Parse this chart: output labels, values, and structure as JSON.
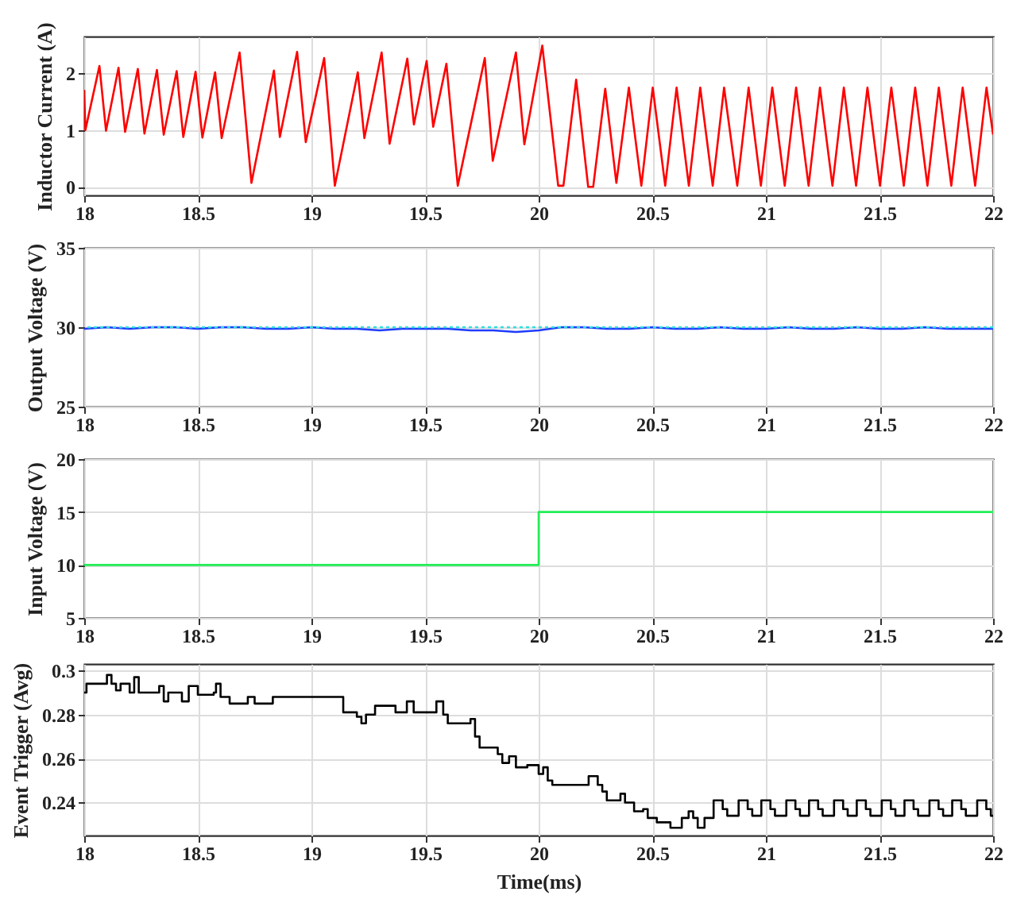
{
  "chart_data": [
    {
      "type": "line",
      "ylabel": "Inductor Current (A)",
      "xlim": [
        18,
        22
      ],
      "xticks": [
        18,
        18.5,
        19,
        19.5,
        20,
        20.5,
        21,
        21.5,
        22
      ],
      "ylim": [
        -0.15,
        2.65
      ],
      "yticks": [
        0,
        1,
        2
      ],
      "grid": true,
      "x": [
        18.0,
        18.005,
        18.067,
        18.096,
        18.151,
        18.18,
        18.236,
        18.265,
        18.32,
        18.35,
        18.407,
        18.436,
        18.49,
        18.52,
        18.576,
        18.605,
        18.684,
        18.736,
        18.835,
        18.861,
        18.937,
        18.975,
        19.056,
        19.103,
        19.204,
        19.233,
        19.309,
        19.344,
        19.422,
        19.451,
        19.507,
        19.536,
        19.594,
        19.644,
        19.763,
        19.798,
        19.9,
        19.937,
        20.016,
        20.086,
        20.109,
        20.165,
        20.218,
        20.24,
        20.293,
        20.342,
        20.397,
        20.452,
        20.502,
        20.557,
        20.607,
        20.661,
        20.711,
        20.766,
        20.816,
        20.874,
        20.924,
        20.978,
        21.028,
        21.083,
        21.133,
        21.188,
        21.238,
        21.293,
        21.343,
        21.397,
        21.447,
        21.502,
        21.552,
        21.607,
        21.657,
        21.711,
        21.761,
        21.816,
        21.866,
        21.921,
        21.971,
        22.0
      ],
      "series": [
        {
          "color": "#ff0000",
          "values": [
            1.71,
            1.0,
            2.13,
            0.99,
            2.1,
            0.97,
            2.08,
            0.94,
            2.06,
            0.92,
            2.04,
            0.88,
            2.03,
            0.87,
            2.02,
            0.86,
            2.37,
            0.07,
            2.05,
            0.88,
            2.38,
            0.79,
            2.27,
            0.02,
            2.02,
            0.86,
            2.37,
            0.76,
            2.26,
            1.1,
            2.22,
            1.06,
            2.17,
            0.02,
            2.27,
            0.46,
            2.37,
            0.75,
            2.49,
            0.02,
            0.02,
            1.89,
            0.0,
            0.0,
            1.73,
            0.07,
            1.75,
            0.02,
            1.75,
            0.02,
            1.75,
            0.02,
            1.75,
            0.02,
            1.75,
            0.02,
            1.75,
            0.02,
            1.75,
            0.02,
            1.75,
            0.02,
            1.75,
            0.02,
            1.75,
            0.02,
            1.75,
            0.02,
            1.75,
            0.02,
            1.75,
            0.02,
            1.75,
            0.02,
            1.75,
            0.02,
            1.75,
            0.92
          ]
        }
      ]
    },
    {
      "type": "line",
      "ylabel": "Output Voltage (V)",
      "xlim": [
        18,
        22
      ],
      "xticks": [
        18,
        18.5,
        19,
        19.5,
        20,
        20.5,
        21,
        21.5,
        22
      ],
      "ylim": [
        25,
        35
      ],
      "yticks": [
        25,
        30,
        35
      ],
      "grid": true,
      "x": [
        18.0,
        18.1,
        18.2,
        18.3,
        18.4,
        18.5,
        18.6,
        18.7,
        18.8,
        18.9,
        19.0,
        19.1,
        19.2,
        19.3,
        19.4,
        19.5,
        19.6,
        19.7,
        19.8,
        19.9,
        20.0,
        20.1,
        20.2,
        20.3,
        20.4,
        20.5,
        20.6,
        20.7,
        20.8,
        20.9,
        21.0,
        21.1,
        21.2,
        21.3,
        21.4,
        21.5,
        21.6,
        21.7,
        21.8,
        21.9,
        22.0
      ],
      "series": [
        {
          "color": "#1f3cff",
          "values": [
            29.9,
            30.0,
            29.9,
            30.0,
            30.0,
            29.9,
            30.0,
            30.0,
            29.9,
            29.9,
            30.0,
            29.9,
            29.9,
            29.8,
            29.9,
            29.9,
            29.9,
            29.8,
            29.8,
            29.7,
            29.8,
            30.0,
            30.0,
            29.9,
            29.9,
            30.0,
            29.9,
            29.9,
            30.0,
            29.9,
            29.9,
            30.0,
            29.9,
            29.9,
            30.0,
            29.9,
            29.9,
            30.0,
            29.9,
            29.9,
            29.9
          ]
        }
      ],
      "ref_lines": [
        {
          "axis": "y",
          "value": 30,
          "color": "#33dddd",
          "line_style": "dotted"
        }
      ]
    },
    {
      "type": "step",
      "ylabel": "Input Voltage (V)",
      "xlim": [
        18,
        22
      ],
      "xticks": [
        18,
        18.5,
        19,
        19.5,
        20,
        20.5,
        21,
        21.5,
        22
      ],
      "ylim": [
        5,
        20
      ],
      "yticks": [
        5,
        10,
        15,
        20
      ],
      "grid": true,
      "x": [
        18,
        20,
        22
      ],
      "series": [
        {
          "color": "#22ee55",
          "values": [
            10,
            15,
            15
          ]
        }
      ]
    },
    {
      "type": "step",
      "ylabel": "Event Trigger (Avg)",
      "xlabel": "Time(ms)",
      "xlim": [
        18,
        22
      ],
      "xticks": [
        18,
        18.5,
        19,
        19.5,
        20,
        20.5,
        21,
        21.5,
        22
      ],
      "ylim": [
        0.225,
        0.303
      ],
      "yticks": [
        0.24,
        0.26,
        0.28,
        0.3
      ],
      "grid": true,
      "x": [
        18.0,
        18.01,
        18.1,
        18.12,
        18.14,
        18.16,
        18.2,
        18.22,
        18.24,
        18.33,
        18.35,
        18.37,
        18.43,
        18.46,
        18.5,
        18.57,
        18.58,
        18.6,
        18.64,
        18.72,
        18.75,
        18.83,
        19.14,
        19.2,
        19.22,
        19.24,
        19.28,
        19.37,
        19.42,
        19.45,
        19.55,
        19.58,
        19.6,
        19.7,
        19.72,
        19.74,
        19.82,
        19.84,
        19.87,
        19.9,
        19.95,
        20.0,
        20.02,
        20.04,
        20.06,
        20.22,
        20.26,
        20.28,
        20.3,
        20.36,
        20.38,
        20.42,
        20.46,
        20.48,
        20.52,
        20.58,
        20.63,
        20.66,
        20.68,
        20.7,
        20.73,
        20.77,
        20.81,
        20.83,
        20.88,
        20.92,
        20.94,
        20.98,
        21.02,
        21.04,
        21.09,
        21.13,
        21.15,
        21.19,
        21.23,
        21.25,
        21.3,
        21.34,
        21.36,
        21.4,
        21.44,
        21.46,
        21.51,
        21.55,
        21.57,
        21.61,
        21.65,
        21.67,
        21.72,
        21.76,
        21.78,
        21.82,
        21.86,
        21.88,
        21.93,
        21.97,
        21.99,
        22.0
      ],
      "series": [
        {
          "color": "#000000",
          "values": [
            0.29,
            0.294,
            0.298,
            0.294,
            0.291,
            0.294,
            0.29,
            0.297,
            0.29,
            0.293,
            0.286,
            0.29,
            0.286,
            0.293,
            0.289,
            0.29,
            0.294,
            0.288,
            0.285,
            0.288,
            0.285,
            0.288,
            0.281,
            0.279,
            0.276,
            0.28,
            0.284,
            0.281,
            0.286,
            0.281,
            0.286,
            0.28,
            0.276,
            0.278,
            0.27,
            0.265,
            0.262,
            0.258,
            0.261,
            0.256,
            0.257,
            0.253,
            0.256,
            0.25,
            0.248,
            0.252,
            0.248,
            0.245,
            0.241,
            0.244,
            0.24,
            0.236,
            0.237,
            0.233,
            0.231,
            0.2285,
            0.233,
            0.236,
            0.233,
            0.2285,
            0.233,
            0.241,
            0.237,
            0.234,
            0.241,
            0.237,
            0.234,
            0.241,
            0.237,
            0.234,
            0.241,
            0.237,
            0.234,
            0.241,
            0.237,
            0.234,
            0.241,
            0.237,
            0.234,
            0.241,
            0.237,
            0.234,
            0.241,
            0.237,
            0.234,
            0.241,
            0.237,
            0.234,
            0.241,
            0.237,
            0.234,
            0.241,
            0.237,
            0.234,
            0.241,
            0.237,
            0.234,
            0.234
          ]
        }
      ]
    }
  ]
}
